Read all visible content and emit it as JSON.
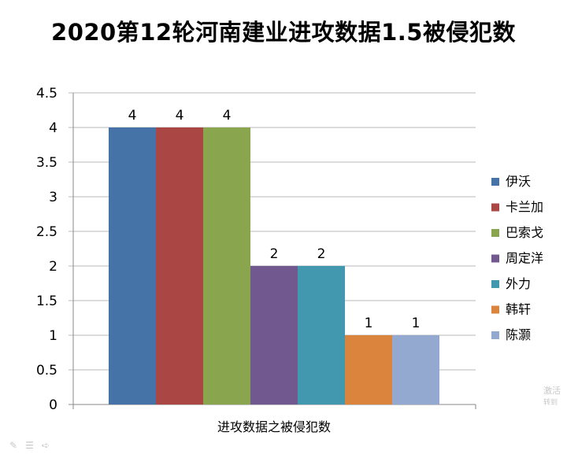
{
  "chart_data": {
    "type": "bar",
    "title": "2020第12轮河南建业进攻数据1.5被侵犯数",
    "xlabel": "进攻数据之被侵犯数",
    "ylabel": "",
    "ylim": [
      0,
      4.5
    ],
    "ytick_labels": [
      "0",
      "0.5",
      "1",
      "1.5",
      "2",
      "2.5",
      "3",
      "3.5",
      "4",
      "4.5"
    ],
    "grid": true,
    "legend_position": "right",
    "series": [
      {
        "name": "伊沃",
        "value": 4,
        "color": "#4572A7"
      },
      {
        "name": "卡兰加",
        "value": 4,
        "color": "#AA4643"
      },
      {
        "name": "巴索戈",
        "value": 4,
        "color": "#89A54E"
      },
      {
        "name": "周定洋",
        "value": 2,
        "color": "#71588F"
      },
      {
        "name": "外力",
        "value": 2,
        "color": "#4198AF"
      },
      {
        "name": "韩轩",
        "value": 1,
        "color": "#DB843D"
      },
      {
        "name": "陈灏",
        "value": 1,
        "color": "#93A9CF"
      }
    ]
  },
  "watermark": {
    "line1": "激活",
    "line2": "转到"
  }
}
